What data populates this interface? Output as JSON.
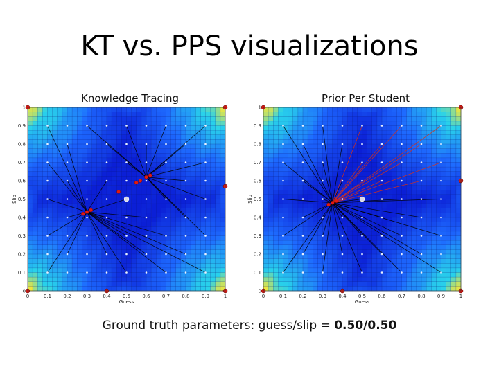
{
  "slide": {
    "title": "KT vs. PPS visualizations",
    "footer_prefix": "Ground truth parameters: guess/slip = ",
    "footer_value": "0.50/0.50"
  },
  "chart_data": [
    {
      "type": "heatmap",
      "title": "Knowledge Tracing",
      "xlabel": "Guess",
      "ylabel": "Slip",
      "xlim": [
        0,
        1
      ],
      "ylim": [
        0,
        1
      ],
      "xticks": [
        "0",
        "0.1",
        "0.2",
        "0.3",
        "0.4",
        "0.5",
        "0.6",
        "0.7",
        "0.8",
        "0.9",
        "1"
      ],
      "yticks": [
        "0",
        "0.1",
        "0.2",
        "0.3",
        "0.4",
        "0.5",
        "0.6",
        "0.7",
        "0.8",
        "0.9",
        "1"
      ],
      "ground_truth": [
        0.5,
        0.5
      ],
      "clusters": [
        [
          0.3,
          0.43
        ],
        [
          0.6,
          0.62
        ]
      ],
      "converged_points": [
        [
          0.28,
          0.42
        ],
        [
          0.3,
          0.43
        ],
        [
          0.32,
          0.44
        ],
        [
          0.55,
          0.59
        ],
        [
          0.57,
          0.6
        ],
        [
          0.6,
          0.62
        ],
        [
          0.62,
          0.63
        ],
        [
          0.46,
          0.54
        ]
      ],
      "corner_points": [
        [
          0,
          1
        ],
        [
          1,
          1
        ],
        [
          0,
          0
        ],
        [
          1,
          0
        ],
        [
          0.4,
          0
        ],
        [
          1,
          0.57
        ]
      ],
      "trajectory_colors": [
        "#000000"
      ],
      "colors": {
        "low": "#0b1fd6",
        "mid": "#1e6bff",
        "high": "#ffe830"
      }
    },
    {
      "type": "heatmap",
      "title": "Prior Per Student",
      "xlabel": "Guess",
      "ylabel": "Slip",
      "xlim": [
        0,
        1
      ],
      "ylim": [
        0,
        1
      ],
      "xticks": [
        "0",
        "0.1",
        "0.2",
        "0.3",
        "0.4",
        "0.5",
        "0.6",
        "0.7",
        "0.8",
        "0.9",
        "1"
      ],
      "yticks": [
        "0",
        "0.1",
        "0.2",
        "0.3",
        "0.4",
        "0.5",
        "0.6",
        "0.7",
        "0.8",
        "0.9",
        "1"
      ],
      "ground_truth": [
        0.5,
        0.5
      ],
      "clusters": [
        [
          0.35,
          0.48
        ]
      ],
      "converged_points": [
        [
          0.33,
          0.47
        ],
        [
          0.35,
          0.48
        ],
        [
          0.37,
          0.49
        ]
      ],
      "corner_points": [
        [
          0,
          1
        ],
        [
          1,
          1
        ],
        [
          0,
          0
        ],
        [
          1,
          0
        ],
        [
          0.4,
          0
        ],
        [
          1,
          0.6
        ]
      ],
      "trajectory_colors": [
        "#000000",
        "#e03010"
      ],
      "colors": {
        "low": "#0b1fd6",
        "mid": "#1e6bff",
        "high": "#ffe830"
      }
    }
  ]
}
